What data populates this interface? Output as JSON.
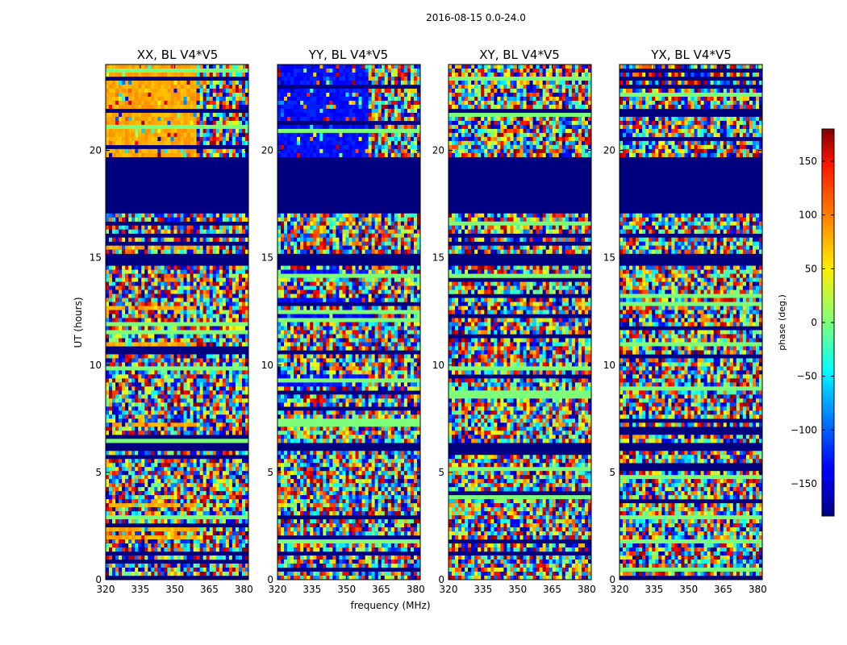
{
  "chart_data": {
    "type": "heatmap",
    "suptitle": "2016-08-15 0.0-24.0",
    "xlabel": "frequency (MHz)",
    "ylabel": "UT (hours)",
    "xlim": [
      320,
      382
    ],
    "ylim": [
      0,
      24
    ],
    "xticks": [
      "320",
      "335",
      "350",
      "365",
      "380"
    ],
    "yticks": [
      "0",
      "5",
      "10",
      "15",
      "20"
    ],
    "panels": [
      {
        "title": "XX, BL V4*V5",
        "dominant_phase": 75
      },
      {
        "title": "YY, BL V4*V5",
        "dominant_phase": -130
      },
      {
        "title": "XY, BL V4*V5",
        "dominant_phase": null
      },
      {
        "title": "YX, BL V4*V5",
        "dominant_phase": null
      }
    ],
    "flagged_ut_ranges": [
      [
        17.0,
        19.6
      ],
      [
        14.6,
        15.1
      ],
      [
        6.0,
        6.4
      ]
    ],
    "colorbar": {
      "label": "phase (deg.)",
      "range": [
        -180,
        180
      ],
      "ticks": [
        "150",
        "100",
        "50",
        "0",
        "−50",
        "−100",
        "−150"
      ],
      "colormap": "jet"
    }
  }
}
